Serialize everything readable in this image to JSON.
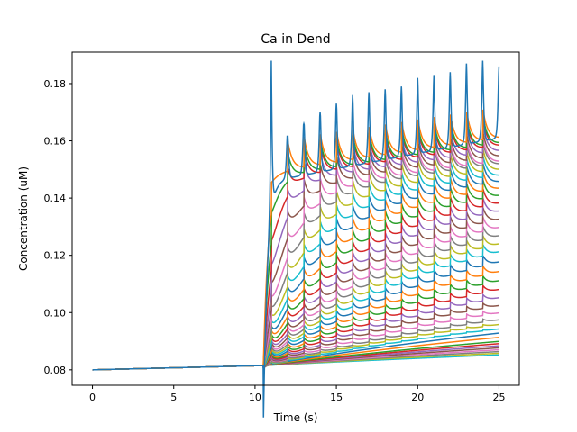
{
  "chart_data": {
    "type": "line",
    "title": "Ca in Dend",
    "xlabel": "Time (s)",
    "ylabel": "Concentration (uM)",
    "xlim": [
      -1.25,
      26.25
    ],
    "ylim": [
      0.0746,
      0.191
    ],
    "xticks": [
      0,
      5,
      10,
      15,
      20,
      25
    ],
    "yticks": [
      0.08,
      0.1,
      0.12,
      0.14,
      0.16,
      0.18
    ],
    "xtick_labels": [
      "0",
      "5",
      "10",
      "15",
      "20",
      "25"
    ],
    "ytick_labels": [
      "0.08",
      "0.10",
      "0.12",
      "0.14",
      "0.16",
      "0.18"
    ],
    "grid": false,
    "legend": "none",
    "num_series": 40,
    "stimulus_onset": 10.5,
    "pulse_period": 1.0,
    "baseline": 0.08,
    "baseline_at_onset": 0.0815,
    "first_peak": 0.188,
    "spike_peaks_top_series": [
      {
        "t": 11,
        "v": 0.188
      },
      {
        "t": 12,
        "v": 0.161
      },
      {
        "t": 13,
        "v": 0.166
      },
      {
        "t": 14,
        "v": 0.17
      },
      {
        "t": 15,
        "v": 0.173
      },
      {
        "t": 16,
        "v": 0.176
      },
      {
        "t": 17,
        "v": 0.177
      },
      {
        "t": 18,
        "v": 0.178
      },
      {
        "t": 19,
        "v": 0.179
      },
      {
        "t": 20,
        "v": 0.182
      },
      {
        "t": 21,
        "v": 0.183
      },
      {
        "t": 22,
        "v": 0.184
      },
      {
        "t": 23,
        "v": 0.187
      },
      {
        "t": 24,
        "v": 0.188
      },
      {
        "t": 25,
        "v": 0.186
      }
    ],
    "series_end_values": [
      0.186,
      0.165,
      0.163,
      0.162,
      0.16,
      0.158,
      0.156,
      0.155,
      0.153,
      0.151,
      0.149,
      0.147,
      0.145,
      0.143,
      0.141,
      0.139,
      0.137,
      0.135,
      0.133,
      0.131,
      0.128,
      0.125,
      0.122,
      0.119,
      0.116,
      0.113,
      0.11,
      0.107,
      0.105,
      0.103,
      0.101,
      0.099,
      0.097,
      0.096,
      0.095,
      0.094,
      0.093,
      0.092,
      0.091,
      0.09
    ],
    "colors": [
      "#1f77b4",
      "#ff7f0e",
      "#2ca02c",
      "#d62728",
      "#9467bd",
      "#8c564b",
      "#e377c2",
      "#7f7f7f",
      "#bcbd22",
      "#17becf"
    ]
  }
}
